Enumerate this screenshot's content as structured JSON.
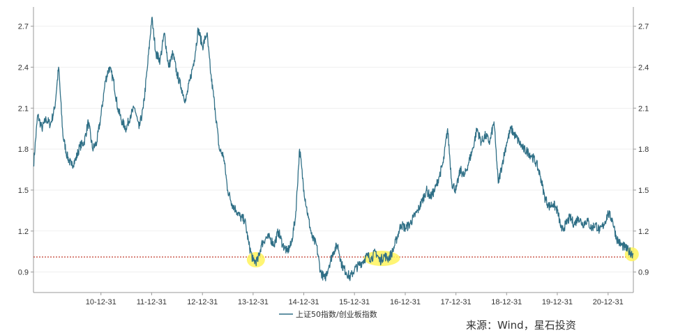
{
  "chart_data": {
    "type": "line",
    "title": "",
    "xlabel": "",
    "ylabel": "",
    "ylim": [
      0.75,
      2.8
    ],
    "y_ticks": [
      0.9,
      1.2,
      1.5,
      1.8,
      2.1,
      2.4,
      2.7
    ],
    "y_tick_labels": [
      "0.9",
      "1.2",
      "1.5",
      "1.8",
      "2.1",
      "2.4",
      "2.7"
    ],
    "dual_y_axis": true,
    "x_range": [
      "2009-09-01",
      "2021-07-01"
    ],
    "x_ticks": [
      "2010-12-31",
      "2011-12-31",
      "2012-12-31",
      "2013-12-31",
      "2014-12-31",
      "2015-12-31",
      "2016-12-31",
      "2017-12-31",
      "2018-12-31",
      "2019-12-31",
      "2020-12-31"
    ],
    "x_tick_labels": [
      "10-12-31",
      "11-12-31",
      "12-12-31",
      "13-12-31",
      "14-12-31",
      "15-12-31",
      "16-12-31",
      "17-12-31",
      "18-12-31",
      "19-12-31",
      "20-12-31"
    ],
    "reference_line": {
      "y": 1.01,
      "color": "#c0392b",
      "style": "dotted"
    },
    "highlights": [
      {
        "x": "2014-01-20",
        "y": 0.99,
        "color": "#fff35c"
      },
      {
        "x": "2016-07-15",
        "y": 1.0,
        "color": "#fff35c"
      },
      {
        "x": "2021-06-20",
        "y": 1.03,
        "color": "#fff35c"
      }
    ],
    "series": [
      {
        "name": "上证50指数/创业板指数",
        "color": "#2f6f86",
        "points": [
          [
            "2009-09-01",
            1.68
          ],
          [
            "2009-10-01",
            2.05
          ],
          [
            "2009-11-01",
            1.95
          ],
          [
            "2009-12-01",
            2.02
          ],
          [
            "2010-01-01",
            1.98
          ],
          [
            "2010-02-01",
            2.1
          ],
          [
            "2010-03-01",
            2.4
          ],
          [
            "2010-04-01",
            1.9
          ],
          [
            "2010-05-01",
            1.75
          ],
          [
            "2010-06-01",
            1.68
          ],
          [
            "2010-07-01",
            1.72
          ],
          [
            "2010-08-01",
            1.82
          ],
          [
            "2010-09-01",
            1.85
          ],
          [
            "2010-10-01",
            2.0
          ],
          [
            "2010-11-01",
            1.8
          ],
          [
            "2010-12-01",
            1.85
          ],
          [
            "2011-01-01",
            2.05
          ],
          [
            "2011-02-01",
            2.3
          ],
          [
            "2011-03-01",
            2.4
          ],
          [
            "2011-04-01",
            2.3
          ],
          [
            "2011-05-01",
            2.1
          ],
          [
            "2011-06-01",
            2.0
          ],
          [
            "2011-07-01",
            1.95
          ],
          [
            "2011-08-01",
            2.05
          ],
          [
            "2011-09-01",
            2.1
          ],
          [
            "2011-10-01",
            1.95
          ],
          [
            "2011-11-01",
            2.1
          ],
          [
            "2011-12-01",
            2.4
          ],
          [
            "2012-01-01",
            2.76
          ],
          [
            "2012-02-01",
            2.5
          ],
          [
            "2012-03-01",
            2.45
          ],
          [
            "2012-04-01",
            2.65
          ],
          [
            "2012-05-01",
            2.4
          ],
          [
            "2012-06-01",
            2.5
          ],
          [
            "2012-07-01",
            2.35
          ],
          [
            "2012-08-01",
            2.25
          ],
          [
            "2012-09-01",
            2.15
          ],
          [
            "2012-10-01",
            2.3
          ],
          [
            "2012-11-01",
            2.45
          ],
          [
            "2012-12-01",
            2.68
          ],
          [
            "2013-01-01",
            2.55
          ],
          [
            "2013-02-01",
            2.65
          ],
          [
            "2013-03-01",
            2.35
          ],
          [
            "2013-04-01",
            2.1
          ],
          [
            "2013-05-01",
            1.8
          ],
          [
            "2013-06-01",
            1.75
          ],
          [
            "2013-07-01",
            1.5
          ],
          [
            "2013-08-01",
            1.4
          ],
          [
            "2013-09-01",
            1.35
          ],
          [
            "2013-10-01",
            1.3
          ],
          [
            "2013-11-01",
            1.28
          ],
          [
            "2013-12-01",
            1.1
          ],
          [
            "2014-01-01",
            0.98
          ],
          [
            "2014-02-01",
            0.98
          ],
          [
            "2014-03-01",
            1.1
          ],
          [
            "2014-04-01",
            1.15
          ],
          [
            "2014-05-01",
            1.15
          ],
          [
            "2014-06-01",
            1.1
          ],
          [
            "2014-07-01",
            1.2
          ],
          [
            "2014-08-01",
            1.1
          ],
          [
            "2014-09-01",
            1.05
          ],
          [
            "2014-10-01",
            1.1
          ],
          [
            "2014-11-01",
            1.3
          ],
          [
            "2014-12-01",
            1.8
          ],
          [
            "2015-01-01",
            1.5
          ],
          [
            "2015-02-01",
            1.3
          ],
          [
            "2015-03-01",
            1.15
          ],
          [
            "2015-04-01",
            1.1
          ],
          [
            "2015-05-01",
            0.9
          ],
          [
            "2015-06-01",
            0.85
          ],
          [
            "2015-07-01",
            0.95
          ],
          [
            "2015-08-01",
            1.05
          ],
          [
            "2015-09-01",
            1.1
          ],
          [
            "2015-10-01",
            0.95
          ],
          [
            "2015-11-01",
            0.9
          ],
          [
            "2015-12-01",
            0.86
          ],
          [
            "2016-01-01",
            0.92
          ],
          [
            "2016-02-01",
            0.95
          ],
          [
            "2016-03-01",
            0.98
          ],
          [
            "2016-04-01",
            1.02
          ],
          [
            "2016-05-01",
            1.0
          ],
          [
            "2016-06-01",
            1.05
          ],
          [
            "2016-07-01",
            0.98
          ],
          [
            "2016-08-01",
            1.02
          ],
          [
            "2016-09-01",
            1.0
          ],
          [
            "2016-10-01",
            1.05
          ],
          [
            "2016-11-01",
            1.15
          ],
          [
            "2016-12-01",
            1.25
          ],
          [
            "2017-01-01",
            1.22
          ],
          [
            "2017-02-01",
            1.25
          ],
          [
            "2017-03-01",
            1.3
          ],
          [
            "2017-04-01",
            1.35
          ],
          [
            "2017-05-01",
            1.42
          ],
          [
            "2017-06-01",
            1.5
          ],
          [
            "2017-07-01",
            1.45
          ],
          [
            "2017-08-01",
            1.5
          ],
          [
            "2017-09-01",
            1.6
          ],
          [
            "2017-10-01",
            1.7
          ],
          [
            "2017-11-01",
            1.95
          ],
          [
            "2017-12-01",
            1.55
          ],
          [
            "2018-01-01",
            1.5
          ],
          [
            "2018-02-01",
            1.65
          ],
          [
            "2018-03-01",
            1.6
          ],
          [
            "2018-04-01",
            1.7
          ],
          [
            "2018-05-01",
            1.8
          ],
          [
            "2018-06-01",
            1.95
          ],
          [
            "2018-07-01",
            1.85
          ],
          [
            "2018-08-01",
            1.9
          ],
          [
            "2018-09-01",
            1.85
          ],
          [
            "2018-10-01",
            2.0
          ],
          [
            "2018-11-01",
            1.55
          ],
          [
            "2018-12-01",
            1.7
          ],
          [
            "2019-01-01",
            1.85
          ],
          [
            "2019-02-01",
            1.95
          ],
          [
            "2019-03-01",
            1.9
          ],
          [
            "2019-04-01",
            1.85
          ],
          [
            "2019-05-01",
            1.8
          ],
          [
            "2019-06-01",
            1.78
          ],
          [
            "2019-07-01",
            1.75
          ],
          [
            "2019-08-01",
            1.7
          ],
          [
            "2019-09-01",
            1.6
          ],
          [
            "2019-10-01",
            1.45
          ],
          [
            "2019-11-01",
            1.38
          ],
          [
            "2019-12-01",
            1.4
          ],
          [
            "2020-01-01",
            1.35
          ],
          [
            "2020-02-01",
            1.2
          ],
          [
            "2020-03-01",
            1.25
          ],
          [
            "2020-04-01",
            1.3
          ],
          [
            "2020-05-01",
            1.25
          ],
          [
            "2020-06-01",
            1.3
          ],
          [
            "2020-07-01",
            1.25
          ],
          [
            "2020-08-01",
            1.28
          ],
          [
            "2020-09-01",
            1.22
          ],
          [
            "2020-10-01",
            1.25
          ],
          [
            "2020-11-01",
            1.2
          ],
          [
            "2020-12-01",
            1.25
          ],
          [
            "2021-01-01",
            1.33
          ],
          [
            "2021-02-01",
            1.28
          ],
          [
            "2021-03-01",
            1.15
          ],
          [
            "2021-04-01",
            1.1
          ],
          [
            "2021-05-01",
            1.08
          ],
          [
            "2021-06-01",
            1.05
          ],
          [
            "2021-07-01",
            1.03
          ]
        ]
      }
    ],
    "legend": "bottom-center"
  },
  "source_text": "来源：Wind，星石投资",
  "colors": {
    "line": "#2f6f86",
    "highlight": "#fff35c",
    "ref_line": "#c0392b",
    "axis": "#999999",
    "grid": "#e6e6e6"
  }
}
